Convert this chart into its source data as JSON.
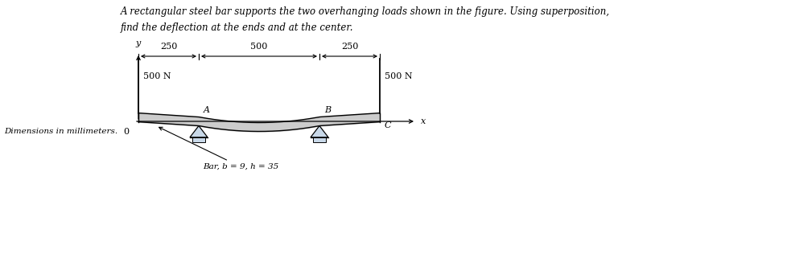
{
  "title_line1": "A rectangular steel bar supports the two overhanging loads shown in the figure. Using superposition,",
  "title_line2": "find the deflection at the ends and at the center.",
  "dim_label": "Dimensions in millimeters.",
  "bar_label": "Bar, b = 9, h = 35",
  "dim_250_left": "250",
  "dim_500": "500",
  "dim_250_right": "250",
  "load_left": "500 N",
  "load_right": "500 N",
  "label_O": "0",
  "label_A": "A",
  "label_B": "B",
  "label_C": "C",
  "label_x": "x",
  "label_y": "y",
  "bg_color": "#ffffff",
  "text_color": "#000000",
  "line_color": "#000000",
  "support_color": "#c8d8e8",
  "beam_fill": "#aaaaaa",
  "fig_width": 9.88,
  "fig_height": 3.26,
  "dpi": 100
}
